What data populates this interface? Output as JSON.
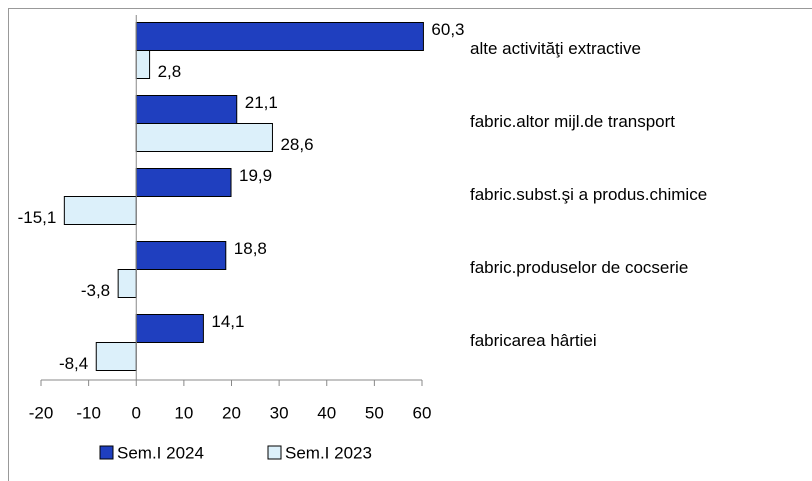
{
  "chart_data": {
    "type": "hbar",
    "categories": [
      "alte activităţi extractive",
      "fabric.altor mijl.de transport",
      "fabric.subst.şi a produs.chimice",
      "fabric.produselor de cocserie",
      "fabricarea hârtiei"
    ],
    "series": [
      {
        "name": "Sem.I 2024",
        "color": "#1f3fbf",
        "values": [
          60.3,
          21.1,
          19.9,
          18.8,
          14.1
        ],
        "value_labels": [
          "60,3",
          "21,1",
          "19,9",
          "18,8",
          "14,1"
        ]
      },
      {
        "name": "Sem.I 2023",
        "color": "#dcf0fa",
        "values": [
          2.8,
          28.6,
          -15.1,
          -3.8,
          -8.4
        ],
        "value_labels": [
          "2,8",
          "28,6",
          "-15,1",
          "-3,8",
          "-8,4"
        ]
      }
    ],
    "xlim": [
      -20,
      60
    ],
    "xticks": [
      -20,
      -10,
      0,
      10,
      20,
      30,
      40,
      50,
      60
    ]
  }
}
